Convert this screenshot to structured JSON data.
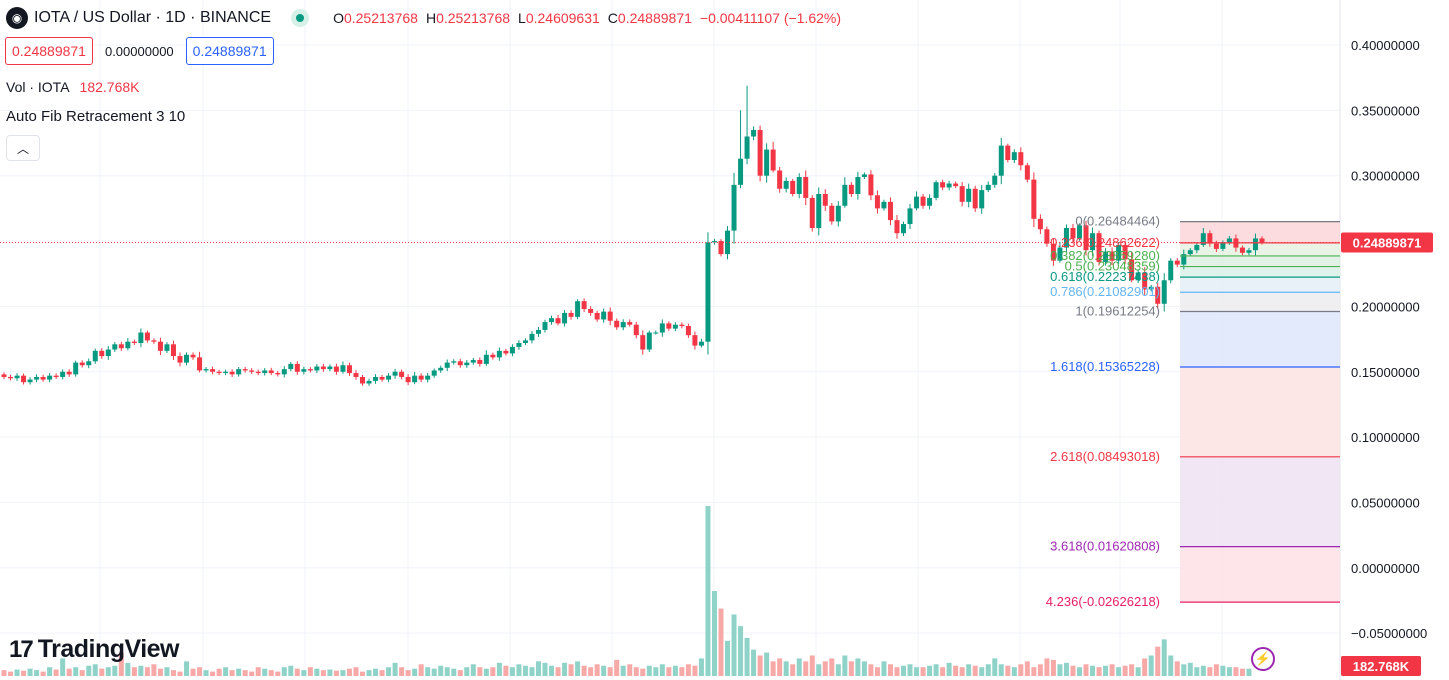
{
  "header": {
    "symbol_logo": "iota-logo-icon",
    "title": "IOTA / US Dollar · 1D · BINANCE",
    "ohlc": [
      {
        "k": "O",
        "v": "0.25213768"
      },
      {
        "k": "H",
        "v": "0.25213768"
      },
      {
        "k": "L",
        "v": "0.24609631"
      },
      {
        "k": "C",
        "v": "0.24889871"
      }
    ],
    "change": "−0.00411107 (−1.62%)"
  },
  "trade": {
    "sell": "0.24889871",
    "spread": "0.00000000",
    "buy": "0.24889871"
  },
  "indicators": {
    "vol_label": "Vol · IOTA",
    "vol_value": "182.768K",
    "fib_label": "Auto Fib Retracement 3 10"
  },
  "branding": {
    "logo_text": "TradingView",
    "logo_mark": "17"
  },
  "colors": {
    "up": "#089981",
    "down": "#f23645",
    "up_vol": "#8fd3c8",
    "down_vol": "#f7a9a7"
  },
  "chart_data": {
    "type": "candlestick",
    "title": "IOTA / US Dollar · 1D · BINANCE",
    "ylim": [
      -0.06,
      0.42
    ],
    "y_ticks": [
      "0.40000000",
      "0.35000000",
      "0.30000000",
      "0.25000000",
      "0.20000000",
      "0.15000000",
      "0.10000000",
      "0.05000000",
      "0.00000000",
      "−0.05000000"
    ],
    "y_tick_values": [
      0.4,
      0.35,
      0.3,
      0.25,
      0.2,
      0.15,
      0.1,
      0.05,
      0.0,
      -0.05
    ],
    "current_price": 0.24889871,
    "current_price_label": "0.24889871",
    "volume_label": "182.768K",
    "grid": true,
    "closes": [
      0.146,
      0.145,
      0.147,
      0.142,
      0.144,
      0.146,
      0.144,
      0.147,
      0.146,
      0.15,
      0.148,
      0.157,
      0.155,
      0.158,
      0.166,
      0.162,
      0.167,
      0.171,
      0.168,
      0.173,
      0.172,
      0.18,
      0.174,
      0.173,
      0.166,
      0.171,
      0.162,
      0.157,
      0.163,
      0.161,
      0.151,
      0.152,
      0.15,
      0.149,
      0.15,
      0.148,
      0.152,
      0.151,
      0.15,
      0.149,
      0.151,
      0.149,
      0.148,
      0.152,
      0.156,
      0.15,
      0.152,
      0.151,
      0.154,
      0.152,
      0.154,
      0.15,
      0.155,
      0.149,
      0.146,
      0.141,
      0.143,
      0.146,
      0.144,
      0.147,
      0.15,
      0.146,
      0.142,
      0.147,
      0.144,
      0.147,
      0.151,
      0.153,
      0.157,
      0.158,
      0.155,
      0.157,
      0.159,
      0.156,
      0.163,
      0.161,
      0.166,
      0.164,
      0.169,
      0.172,
      0.174,
      0.179,
      0.182,
      0.188,
      0.191,
      0.187,
      0.195,
      0.192,
      0.204,
      0.198,
      0.195,
      0.19,
      0.196,
      0.189,
      0.184,
      0.188,
      0.186,
      0.178,
      0.167,
      0.18,
      0.18,
      0.187,
      0.183,
      0.186,
      0.185,
      0.178,
      0.17,
      0.173,
      0.249,
      0.25,
      0.24,
      0.258,
      0.293,
      0.313,
      0.33,
      0.335,
      0.3,
      0.32,
      0.304,
      0.29,
      0.296,
      0.286,
      0.299,
      0.283,
      0.26,
      0.286,
      0.277,
      0.265,
      0.277,
      0.293,
      0.286,
      0.299,
      0.301,
      0.285,
      0.275,
      0.28,
      0.266,
      0.256,
      0.263,
      0.275,
      0.284,
      0.277,
      0.283,
      0.295,
      0.291,
      0.294,
      0.292,
      0.28,
      0.29,
      0.275,
      0.289,
      0.293,
      0.3,
      0.323,
      0.312,
      0.318,
      0.308,
      0.297,
      0.267,
      0.259,
      0.248,
      0.235,
      0.245,
      0.26,
      0.252,
      0.262,
      0.243,
      0.256,
      0.234,
      0.242,
      0.235,
      0.247,
      0.236,
      0.22,
      0.226,
      0.213,
      0.215,
      0.202,
      0.22,
      0.235,
      0.232,
      0.24,
      0.243,
      0.247,
      0.256,
      0.248,
      0.244,
      0.249,
      0.252,
      0.245,
      0.241,
      0.243,
      0.252,
      0.249
    ],
    "volumes": [
      0.2,
      0.15,
      0.22,
      0.18,
      0.25,
      0.2,
      0.15,
      0.3,
      0.22,
      0.6,
      0.25,
      0.3,
      0.2,
      0.35,
      0.4,
      0.25,
      0.3,
      0.35,
      0.8,
      0.45,
      0.3,
      0.35,
      0.3,
      0.4,
      0.25,
      0.3,
      0.2,
      0.15,
      0.5,
      0.25,
      0.3,
      0.2,
      0.15,
      0.25,
      0.3,
      0.2,
      0.25,
      0.2,
      0.15,
      0.3,
      0.25,
      0.2,
      0.15,
      0.3,
      0.35,
      0.25,
      0.2,
      0.3,
      0.25,
      0.2,
      0.22,
      0.18,
      0.2,
      0.25,
      0.3,
      0.15,
      0.2,
      0.25,
      0.2,
      0.3,
      0.45,
      0.3,
      0.2,
      0.25,
      0.4,
      0.3,
      0.25,
      0.35,
      0.3,
      0.25,
      0.2,
      0.3,
      0.4,
      0.3,
      0.25,
      0.3,
      0.45,
      0.35,
      0.3,
      0.4,
      0.35,
      0.3,
      0.5,
      0.45,
      0.35,
      0.3,
      0.45,
      0.4,
      0.5,
      0.35,
      0.3,
      0.4,
      0.35,
      0.3,
      0.55,
      0.35,
      0.4,
      0.3,
      0.25,
      0.35,
      0.3,
      0.4,
      0.3,
      0.35,
      0.3,
      0.4,
      0.35,
      0.6,
      5.8,
      2.9,
      2.3,
      1.2,
      2.1,
      1.7,
      1.3,
      0.9,
      0.7,
      0.8,
      0.5,
      0.6,
      0.5,
      0.4,
      0.6,
      0.5,
      0.7,
      0.4,
      0.5,
      0.6,
      0.4,
      0.7,
      0.5,
      0.6,
      0.5,
      0.4,
      0.3,
      0.5,
      0.4,
      0.3,
      0.35,
      0.4,
      0.3,
      0.3,
      0.35,
      0.4,
      0.3,
      0.45,
      0.35,
      0.3,
      0.4,
      0.35,
      0.3,
      0.4,
      0.6,
      0.4,
      0.35,
      0.3,
      0.4,
      0.5,
      0.3,
      0.4,
      0.6,
      0.55,
      0.4,
      0.45,
      0.35,
      0.3,
      0.4,
      0.35,
      0.3,
      0.35,
      0.4,
      0.3,
      0.35,
      0.4,
      0.3,
      0.6,
      0.7,
      1.0,
      1.25,
      0.7,
      0.5,
      0.4,
      0.45,
      0.3,
      0.35,
      0.3,
      0.4,
      0.35,
      0.3,
      0.3,
      0.25,
      0.25
    ],
    "fib_levels": [
      {
        "ratio": "0",
        "price": "0.26484464",
        "value": 0.26484464,
        "color": "#787b86",
        "band": null
      },
      {
        "ratio": "0.236",
        "price": "0.24862622",
        "value": 0.24862622,
        "color": "#f23645",
        "band": "#fbd6d8"
      },
      {
        "ratio": "0.382",
        "price": "0.23859280",
        "value": 0.2385928,
        "color": "#4caf50",
        "band": "#e6f2e2"
      },
      {
        "ratio": "0.5",
        "price": "0.23048359",
        "value": 0.23048359,
        "color": "#4caf50",
        "band": "#dcefe0"
      },
      {
        "ratio": "0.618",
        "price": "0.22237438",
        "value": 0.22237438,
        "color": "#089981",
        "band": "#dbf0e9"
      },
      {
        "ratio": "0.786",
        "price": "0.21082901",
        "value": 0.21082901,
        "color": "#64b5f6",
        "band": "#e4eef7"
      },
      {
        "ratio": "1",
        "price": "0.19612254",
        "value": 0.19612254,
        "color": "#787b86",
        "band": "#ececee"
      },
      {
        "ratio": "1.618",
        "price": "0.15365228",
        "value": 0.15365228,
        "color": "#2962ff",
        "band": "#dde6fa"
      },
      {
        "ratio": "2.618",
        "price": "0.08493018",
        "value": 0.08493018,
        "color": "#f23645",
        "band": "#fde2e2"
      },
      {
        "ratio": "3.618",
        "price": "0.01620808",
        "value": 0.01620808,
        "color": "#9c27b0",
        "band": "#efe2f1"
      },
      {
        "ratio": "4.236",
        "price": "-0.02626218",
        "value": -0.02626218,
        "color": "#e91e63",
        "band": "#fde0e6"
      }
    ]
  }
}
